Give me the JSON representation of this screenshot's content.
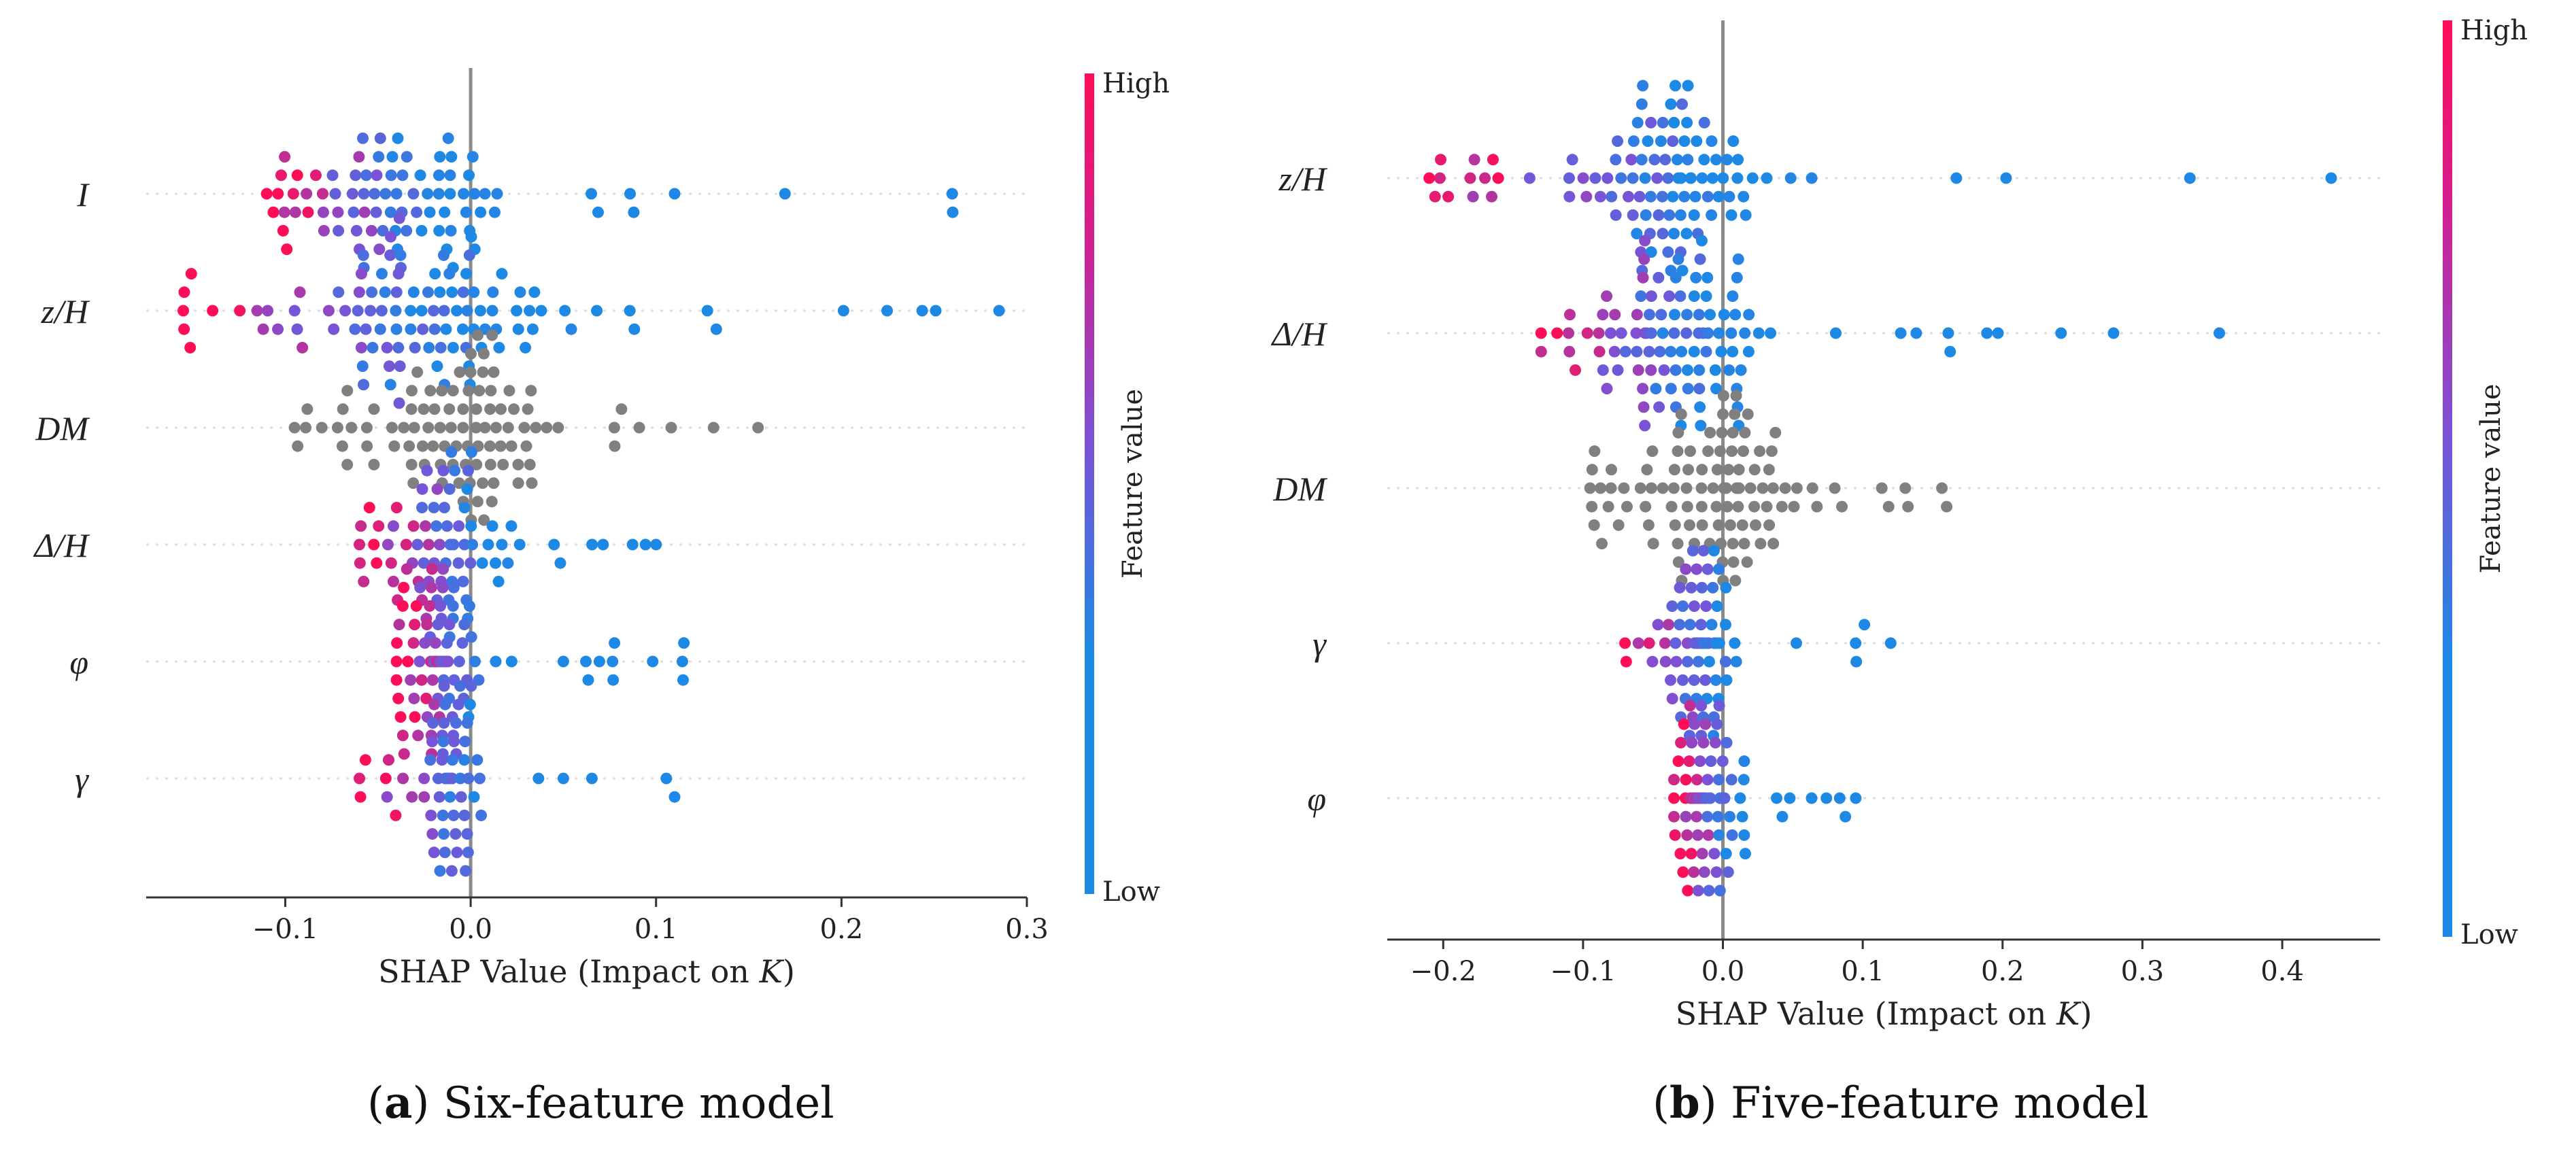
{
  "colors": {
    "high": "#ff0d57",
    "low": "#1e88e5",
    "neutral": "#808080"
  },
  "captions": [
    {
      "letter": "a",
      "rest": ") Six-feature model",
      "open": "("
    },
    {
      "letter": "b",
      "rest": ") Five-feature model",
      "open": "("
    }
  ],
  "chart_data": [
    {
      "type": "scatter",
      "subtype": "shap-beeswarm",
      "xlabel": "SHAP Value (Impact on K)",
      "xlabel_prefix": "SHAP Value (Impact on ",
      "xlabel_var": "K",
      "xlabel_suffix": ")",
      "xlim": [
        -0.175,
        0.3
      ],
      "xticks": [
        -0.1,
        0.0,
        0.1,
        0.2,
        0.3
      ],
      "xtick_labels": [
        "−0.1",
        "0.0",
        "0.1",
        "0.2",
        "0.3"
      ],
      "colorbar": {
        "title": "Feature value",
        "high_label": "High",
        "low_label": "Low"
      },
      "features": [
        {
          "name": "I",
          "label": "I",
          "min": -0.11,
          "max": 0.26,
          "center": -0.04,
          "n": 90,
          "spread": 0.035,
          "coloring": "lowPositive"
        },
        {
          "name": "z/H",
          "label": "z/H",
          "min": -0.155,
          "max": 0.285,
          "center": -0.02,
          "n": 110,
          "spread": 0.045,
          "coloring": "lowPositive"
        },
        {
          "name": "DM",
          "label": "DM",
          "min": -0.095,
          "max": 0.155,
          "center": 0.0,
          "n": 100,
          "spread": 0.03,
          "coloring": "gray"
        },
        {
          "name": "Δ/H",
          "label": "Δ/H",
          "min": -0.06,
          "max": 0.1,
          "center": -0.01,
          "n": 80,
          "spread": 0.025,
          "coloring": "lowPositive"
        },
        {
          "name": "φ",
          "label": "φ",
          "min": -0.04,
          "max": 0.115,
          "center": -0.015,
          "n": 90,
          "spread": 0.015,
          "coloring": "lowPositive"
        },
        {
          "name": "γ",
          "label": "γ",
          "min": -0.06,
          "max": 0.11,
          "center": -0.01,
          "n": 70,
          "spread": 0.012,
          "coloring": "lowPositive"
        }
      ]
    },
    {
      "type": "scatter",
      "subtype": "shap-beeswarm",
      "xlabel": "SHAP Value (Impact on K)",
      "xlabel_prefix": "SHAP Value (Impact on ",
      "xlabel_var": "K",
      "xlabel_suffix": ")",
      "xlim": [
        -0.24,
        0.47
      ],
      "xticks": [
        -0.2,
        -0.1,
        0.0,
        0.1,
        0.2,
        0.3,
        0.4
      ],
      "xtick_labels": [
        "−0.2",
        "−0.1",
        "0.0",
        "0.1",
        "0.2",
        "0.3",
        "0.4"
      ],
      "colorbar": {
        "title": "Feature value",
        "high_label": "High",
        "low_label": "Low"
      },
      "features": [
        {
          "name": "z/H",
          "label": "z/H",
          "min": -0.21,
          "max": 0.435,
          "center": -0.03,
          "n": 110,
          "spread": 0.05,
          "coloring": "lowPositive"
        },
        {
          "name": "Δ/H",
          "label": "Δ/H",
          "min": -0.13,
          "max": 0.355,
          "center": -0.03,
          "n": 110,
          "spread": 0.05,
          "coloring": "lowPositive"
        },
        {
          "name": "DM",
          "label": "DM",
          "min": -0.095,
          "max": 0.16,
          "center": 0.0,
          "n": 110,
          "spread": 0.035,
          "coloring": "gray"
        },
        {
          "name": "γ",
          "label": "γ",
          "min": -0.07,
          "max": 0.12,
          "center": -0.015,
          "n": 80,
          "spread": 0.015,
          "coloring": "lowPositive"
        },
        {
          "name": "φ",
          "label": "φ",
          "min": -0.035,
          "max": 0.095,
          "center": -0.01,
          "n": 90,
          "spread": 0.018,
          "coloring": "lowPositive"
        }
      ]
    }
  ]
}
